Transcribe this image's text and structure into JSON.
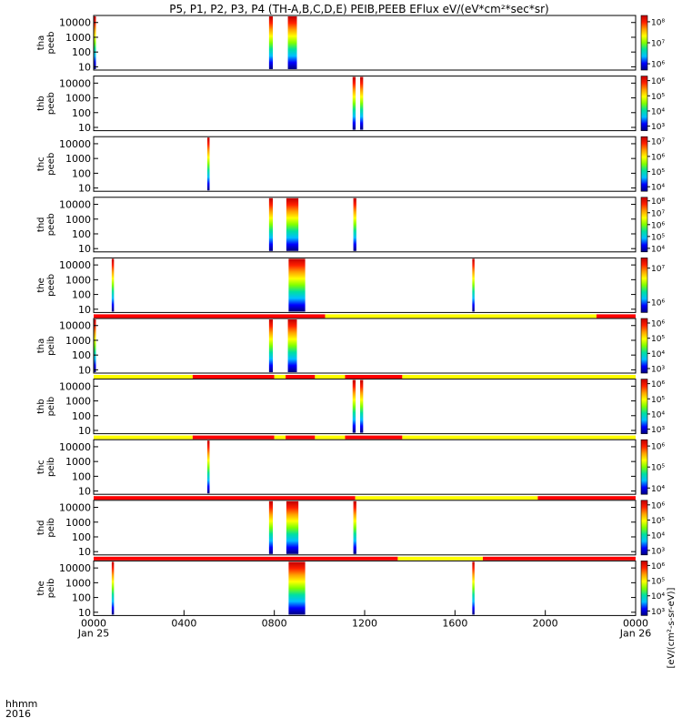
{
  "chart_data": {
    "type": "heatmap",
    "title": "P5, P1, P2, P3, P4 (TH-A,B,C,D,E) PEIB,PEEB EFlux eV/(eV*cm²*sec*sr)",
    "xlabel_top": "hhmm",
    "xlabel_bottom": "2016",
    "x_ticks": [
      "0000",
      "0400",
      "0800",
      "1200",
      "1600",
      "2000",
      "0000"
    ],
    "x_ticks_minutes": [
      0,
      240,
      480,
      720,
      960,
      1200,
      1440
    ],
    "x_date_labels": [
      {
        "label": "Jan 25",
        "minute": 0
      },
      {
        "label": "Jan 26",
        "minute": 1440
      }
    ],
    "y_scale": "log",
    "y_ticks": [
      "10",
      "100",
      "1000",
      "10000"
    ],
    "y_tick_values": [
      10,
      100,
      1000,
      10000
    ],
    "ylim": [
      6,
      30000
    ],
    "colorbar_title": "[eV/(cm²-s-sr-eV)]",
    "colorbar_colors": [
      "#000080",
      "#0000ff",
      "#00bfff",
      "#00e0a0",
      "#80ff00",
      "#ffff00",
      "#ffa000",
      "#ff2000",
      "#c00000"
    ],
    "state_bar_colors": {
      "red": "#ff0000",
      "yellow": "#ffff00"
    },
    "panels": [
      {
        "label": [
          "tha",
          "peeb"
        ],
        "colorbar_ticks": [
          "10⁸",
          "10⁷",
          "10⁶"
        ],
        "colorbar_exps": [
          8,
          7,
          6
        ],
        "bursts": [
          {
            "start": 0,
            "end": 6
          },
          {
            "start": 466,
            "end": 476
          },
          {
            "start": 516,
            "end": 540
          }
        ],
        "state_bar": []
      },
      {
        "label": [
          "thb",
          "peeb"
        ],
        "colorbar_ticks": [
          "10⁶",
          "10⁵",
          "10⁴",
          "10³"
        ],
        "colorbar_exps": [
          6,
          5,
          4,
          3
        ],
        "bursts": [
          {
            "start": 688,
            "end": 696
          },
          {
            "start": 708,
            "end": 716
          }
        ],
        "state_bar": []
      },
      {
        "label": [
          "thc",
          "peeb"
        ],
        "colorbar_ticks": [
          "10⁷",
          "10⁶",
          "10⁵",
          "10⁴"
        ],
        "colorbar_exps": [
          7,
          6,
          5,
          4
        ],
        "bursts": [
          {
            "start": 302,
            "end": 308
          }
        ],
        "state_bar": []
      },
      {
        "label": [
          "thd",
          "peeb"
        ],
        "colorbar_ticks": [
          "10⁸",
          "10⁷",
          "10⁶",
          "10⁵",
          "10⁴"
        ],
        "colorbar_exps": [
          8,
          7,
          6,
          5,
          4
        ],
        "bursts": [
          {
            "start": 466,
            "end": 476
          },
          {
            "start": 512,
            "end": 544
          },
          {
            "start": 690,
            "end": 698
          }
        ],
        "state_bar": []
      },
      {
        "label": [
          "the",
          "peeb"
        ],
        "colorbar_ticks": [
          "10⁷",
          "10⁶"
        ],
        "colorbar_exps": [
          7,
          6
        ],
        "bursts": [
          {
            "start": 48,
            "end": 54
          },
          {
            "start": 518,
            "end": 562
          },
          {
            "start": 1006,
            "end": 1012
          }
        ],
        "state_bar": [
          {
            "start": 0,
            "end": 615,
            "color": "red"
          },
          {
            "start": 615,
            "end": 1336,
            "color": "yellow"
          },
          {
            "start": 1336,
            "end": 1440,
            "color": "red"
          }
        ]
      },
      {
        "label": [
          "tha",
          "peib"
        ],
        "colorbar_ticks": [
          "10⁶",
          "10⁵",
          "10⁴",
          "10³"
        ],
        "colorbar_exps": [
          6,
          5,
          4,
          3
        ],
        "bursts": [
          {
            "start": 0,
            "end": 6
          },
          {
            "start": 466,
            "end": 476
          },
          {
            "start": 516,
            "end": 540
          }
        ],
        "state_bar": [
          {
            "start": 0,
            "end": 263,
            "color": "yellow"
          },
          {
            "start": 263,
            "end": 480,
            "color": "red"
          },
          {
            "start": 480,
            "end": 510,
            "color": "yellow"
          },
          {
            "start": 510,
            "end": 588,
            "color": "red"
          },
          {
            "start": 588,
            "end": 668,
            "color": "yellow"
          },
          {
            "start": 668,
            "end": 820,
            "color": "red"
          },
          {
            "start": 820,
            "end": 1440,
            "color": "yellow"
          }
        ]
      },
      {
        "label": [
          "thb",
          "peib"
        ],
        "colorbar_ticks": [
          "10⁶",
          "10⁵",
          "10⁴",
          "10³"
        ],
        "colorbar_exps": [
          6,
          5,
          4,
          3
        ],
        "bursts": [
          {
            "start": 688,
            "end": 696
          },
          {
            "start": 708,
            "end": 716
          }
        ],
        "state_bar": [
          {
            "start": 0,
            "end": 263,
            "color": "yellow"
          },
          {
            "start": 263,
            "end": 480,
            "color": "red"
          },
          {
            "start": 480,
            "end": 510,
            "color": "yellow"
          },
          {
            "start": 510,
            "end": 588,
            "color": "red"
          },
          {
            "start": 588,
            "end": 668,
            "color": "yellow"
          },
          {
            "start": 668,
            "end": 820,
            "color": "red"
          },
          {
            "start": 820,
            "end": 1440,
            "color": "yellow"
          }
        ]
      },
      {
        "label": [
          "thc",
          "peib"
        ],
        "colorbar_ticks": [
          "10⁶",
          "10⁵",
          "10⁴"
        ],
        "colorbar_exps": [
          6,
          5,
          4
        ],
        "bursts": [
          {
            "start": 302,
            "end": 308
          }
        ],
        "state_bar": [
          {
            "start": 0,
            "end": 695,
            "color": "red"
          },
          {
            "start": 695,
            "end": 1180,
            "color": "yellow"
          },
          {
            "start": 1180,
            "end": 1440,
            "color": "red"
          }
        ]
      },
      {
        "label": [
          "thd",
          "peib"
        ],
        "colorbar_ticks": [
          "10⁶",
          "10⁵",
          "10⁴",
          "10³"
        ],
        "colorbar_exps": [
          6,
          5,
          4,
          3
        ],
        "bursts": [
          {
            "start": 466,
            "end": 476
          },
          {
            "start": 512,
            "end": 544
          },
          {
            "start": 690,
            "end": 698
          }
        ],
        "state_bar": [
          {
            "start": 0,
            "end": 808,
            "color": "red"
          },
          {
            "start": 808,
            "end": 1034,
            "color": "yellow"
          },
          {
            "start": 1034,
            "end": 1440,
            "color": "red"
          }
        ]
      },
      {
        "label": [
          "the",
          "peib"
        ],
        "colorbar_ticks": [
          "10⁶",
          "10⁵",
          "10⁴",
          "10³"
        ],
        "colorbar_exps": [
          6,
          5,
          4,
          3
        ],
        "bursts": [
          {
            "start": 48,
            "end": 54
          },
          {
            "start": 518,
            "end": 562
          },
          {
            "start": 1006,
            "end": 1012
          }
        ],
        "state_bar": []
      }
    ]
  }
}
